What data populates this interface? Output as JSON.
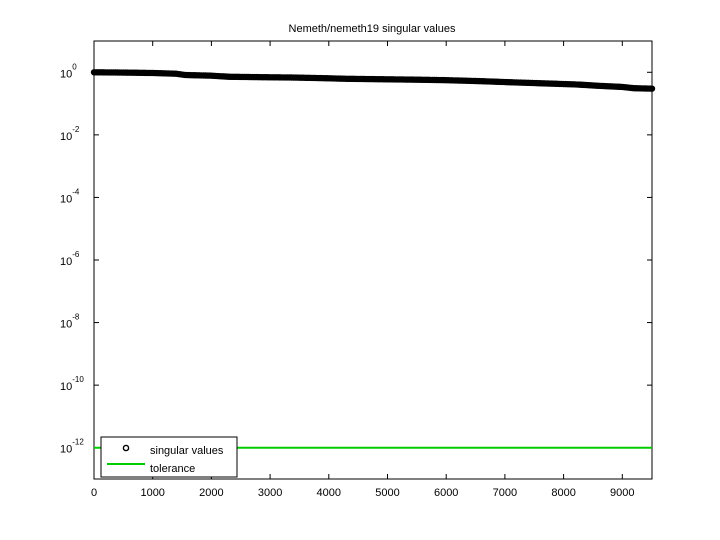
{
  "chart_data": {
    "type": "scatter",
    "title": "Nemeth/nemeth19 singular values",
    "xlabel": "",
    "ylabel": "",
    "y_scale": "log",
    "xlim": [
      0,
      9506
    ],
    "ylim": [
      1e-13,
      10
    ],
    "x_ticks": [
      0,
      1000,
      2000,
      3000,
      4000,
      5000,
      6000,
      7000,
      8000,
      9000
    ],
    "x_tick_labels": [
      "0",
      "1000",
      "2000",
      "3000",
      "4000",
      "5000",
      "6000",
      "7000",
      "8000",
      "9000"
    ],
    "y_ticks": [
      {
        "base": "10",
        "exp": "0",
        "value": 1
      },
      {
        "base": "10",
        "exp": "-2",
        "value": 0.01
      },
      {
        "base": "10",
        "exp": "-4",
        "value": 0.0001
      },
      {
        "base": "10",
        "exp": "-6",
        "value": 1e-06
      },
      {
        "base": "10",
        "exp": "-8",
        "value": 1e-08
      },
      {
        "base": "10",
        "exp": "-10",
        "value": 1e-10
      },
      {
        "base": "10",
        "exp": "-12",
        "value": 1e-12
      }
    ],
    "series": [
      {
        "name": "singular values",
        "marker": "circle",
        "color": "#000000",
        "x": [
          0,
          500,
          1000,
          1400,
          1550,
          2000,
          2300,
          2800,
          3400,
          3900,
          4300,
          4900,
          5500,
          6000,
          6600,
          7100,
          7700,
          8200,
          8600,
          9000,
          9200,
          9506
        ],
        "y": [
          1.0,
          0.98,
          0.95,
          0.9,
          0.82,
          0.78,
          0.72,
          0.7,
          0.68,
          0.65,
          0.62,
          0.6,
          0.58,
          0.56,
          0.52,
          0.48,
          0.44,
          0.41,
          0.37,
          0.34,
          0.31,
          0.3
        ]
      },
      {
        "name": "tolerance",
        "marker": "line",
        "color": "#00cc00",
        "x": [
          0,
          9506
        ],
        "y": [
          1e-12,
          1e-12
        ]
      }
    ],
    "legend": {
      "position": "bottom-left",
      "entries": [
        "singular values",
        "tolerance"
      ]
    },
    "grid": false
  }
}
